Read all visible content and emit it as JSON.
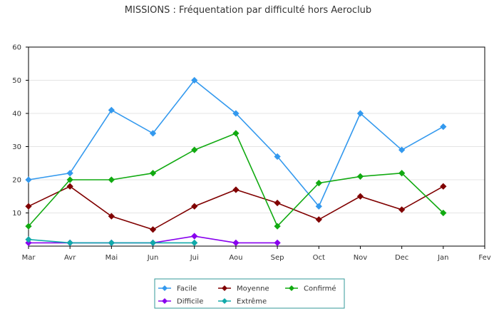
{
  "chart_data": {
    "type": "line",
    "title": "MISSIONS : Fréquentation par difficulté hors Aeroclub",
    "xlabel": "",
    "ylabel": "",
    "categories": [
      "Mar",
      "Avr",
      "Mai",
      "Jun",
      "Jui",
      "Aou",
      "Sep",
      "Oct",
      "Nov",
      "Dec",
      "Jan",
      "Fev"
    ],
    "ylim": [
      0,
      60
    ],
    "yticks": [
      10,
      20,
      30,
      40,
      50,
      60
    ],
    "grid": true,
    "legend_position": "bottom",
    "series": [
      {
        "name": "Facile",
        "color": "#3399ee",
        "values": [
          20,
          22,
          41,
          34,
          50,
          40,
          27,
          12,
          40,
          29,
          36,
          null
        ]
      },
      {
        "name": "Moyenne",
        "color": "#800000",
        "values": [
          12,
          18,
          9,
          5,
          12,
          17,
          13,
          8,
          15,
          11,
          18,
          null
        ]
      },
      {
        "name": "Confirmé",
        "color": "#11aa11",
        "values": [
          6,
          20,
          20,
          22,
          29,
          34,
          6,
          19,
          21,
          22,
          10,
          null
        ]
      },
      {
        "name": "Difficile",
        "color": "#8800ee",
        "values": [
          1,
          1,
          1,
          1,
          3,
          1,
          1,
          null,
          null,
          null,
          null,
          null
        ]
      },
      {
        "name": "Extrême",
        "color": "#11aaaa",
        "values": [
          2,
          1,
          1,
          1,
          1,
          null,
          null,
          null,
          null,
          null,
          null,
          null
        ]
      }
    ]
  }
}
